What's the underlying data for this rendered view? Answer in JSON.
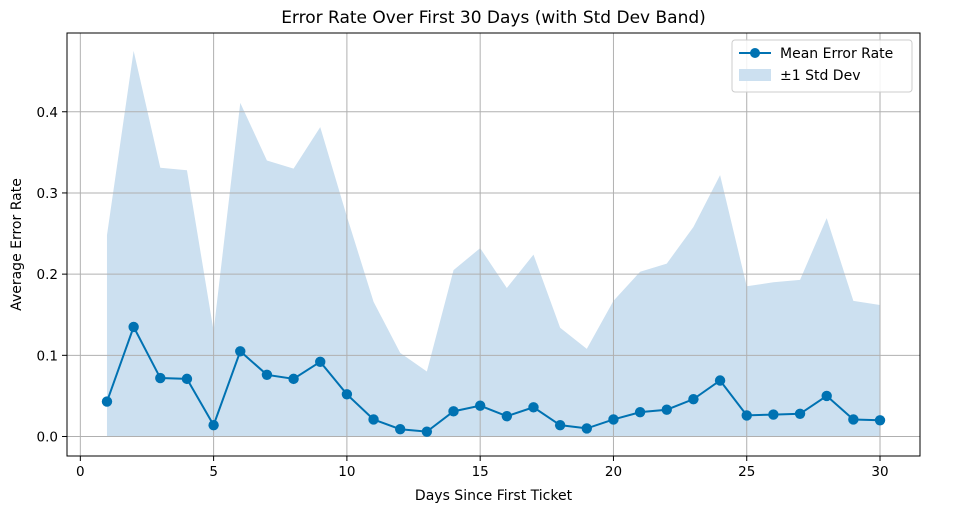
{
  "chart_data": {
    "type": "line",
    "title": "Error Rate Over First 30 Days (with Std Dev Band)",
    "xlabel": "Days Since First Ticket",
    "ylabel": "Average Error Rate",
    "xlim": [
      -0.5,
      31.5
    ],
    "ylim": [
      -0.024,
      0.497
    ],
    "xticks": [
      0,
      5,
      10,
      15,
      20,
      25,
      30
    ],
    "yticks": [
      0.0,
      0.1,
      0.2,
      0.3,
      0.4
    ],
    "ytick_labels": [
      "0.0",
      "0.1",
      "0.2",
      "0.3",
      "0.4"
    ],
    "grid": true,
    "legend_position": "top-right",
    "x": [
      1,
      2,
      3,
      4,
      5,
      6,
      7,
      8,
      9,
      10,
      11,
      12,
      13,
      14,
      15,
      16,
      17,
      18,
      19,
      20,
      21,
      22,
      23,
      24,
      25,
      26,
      27,
      28,
      29,
      30
    ],
    "series": [
      {
        "name": "Mean Error Rate",
        "kind": "line-marker",
        "color": "#0072b2",
        "values": [
          0.043,
          0.135,
          0.072,
          0.071,
          0.014,
          0.105,
          0.076,
          0.071,
          0.092,
          0.052,
          0.021,
          0.009,
          0.006,
          0.031,
          0.038,
          0.025,
          0.036,
          0.014,
          0.01,
          0.021,
          0.03,
          0.033,
          0.046,
          0.069,
          0.026,
          0.027,
          0.028,
          0.05,
          0.021,
          0.02
        ]
      },
      {
        "name": "±1 Std Dev",
        "kind": "band",
        "color": "#cce0f0",
        "lower": [
          0,
          0,
          0,
          0,
          0,
          0,
          0,
          0,
          0,
          0,
          0,
          0,
          0,
          0,
          0,
          0,
          0,
          0,
          0,
          0,
          0,
          0,
          0,
          0,
          0,
          0,
          0,
          0,
          0,
          0
        ],
        "upper": [
          0.248,
          0.475,
          0.331,
          0.328,
          0.13,
          0.411,
          0.34,
          0.33,
          0.381,
          0.271,
          0.166,
          0.103,
          0.08,
          0.205,
          0.232,
          0.183,
          0.224,
          0.134,
          0.108,
          0.167,
          0.203,
          0.213,
          0.258,
          0.322,
          0.185,
          0.19,
          0.193,
          0.269,
          0.167,
          0.162
        ]
      }
    ]
  }
}
